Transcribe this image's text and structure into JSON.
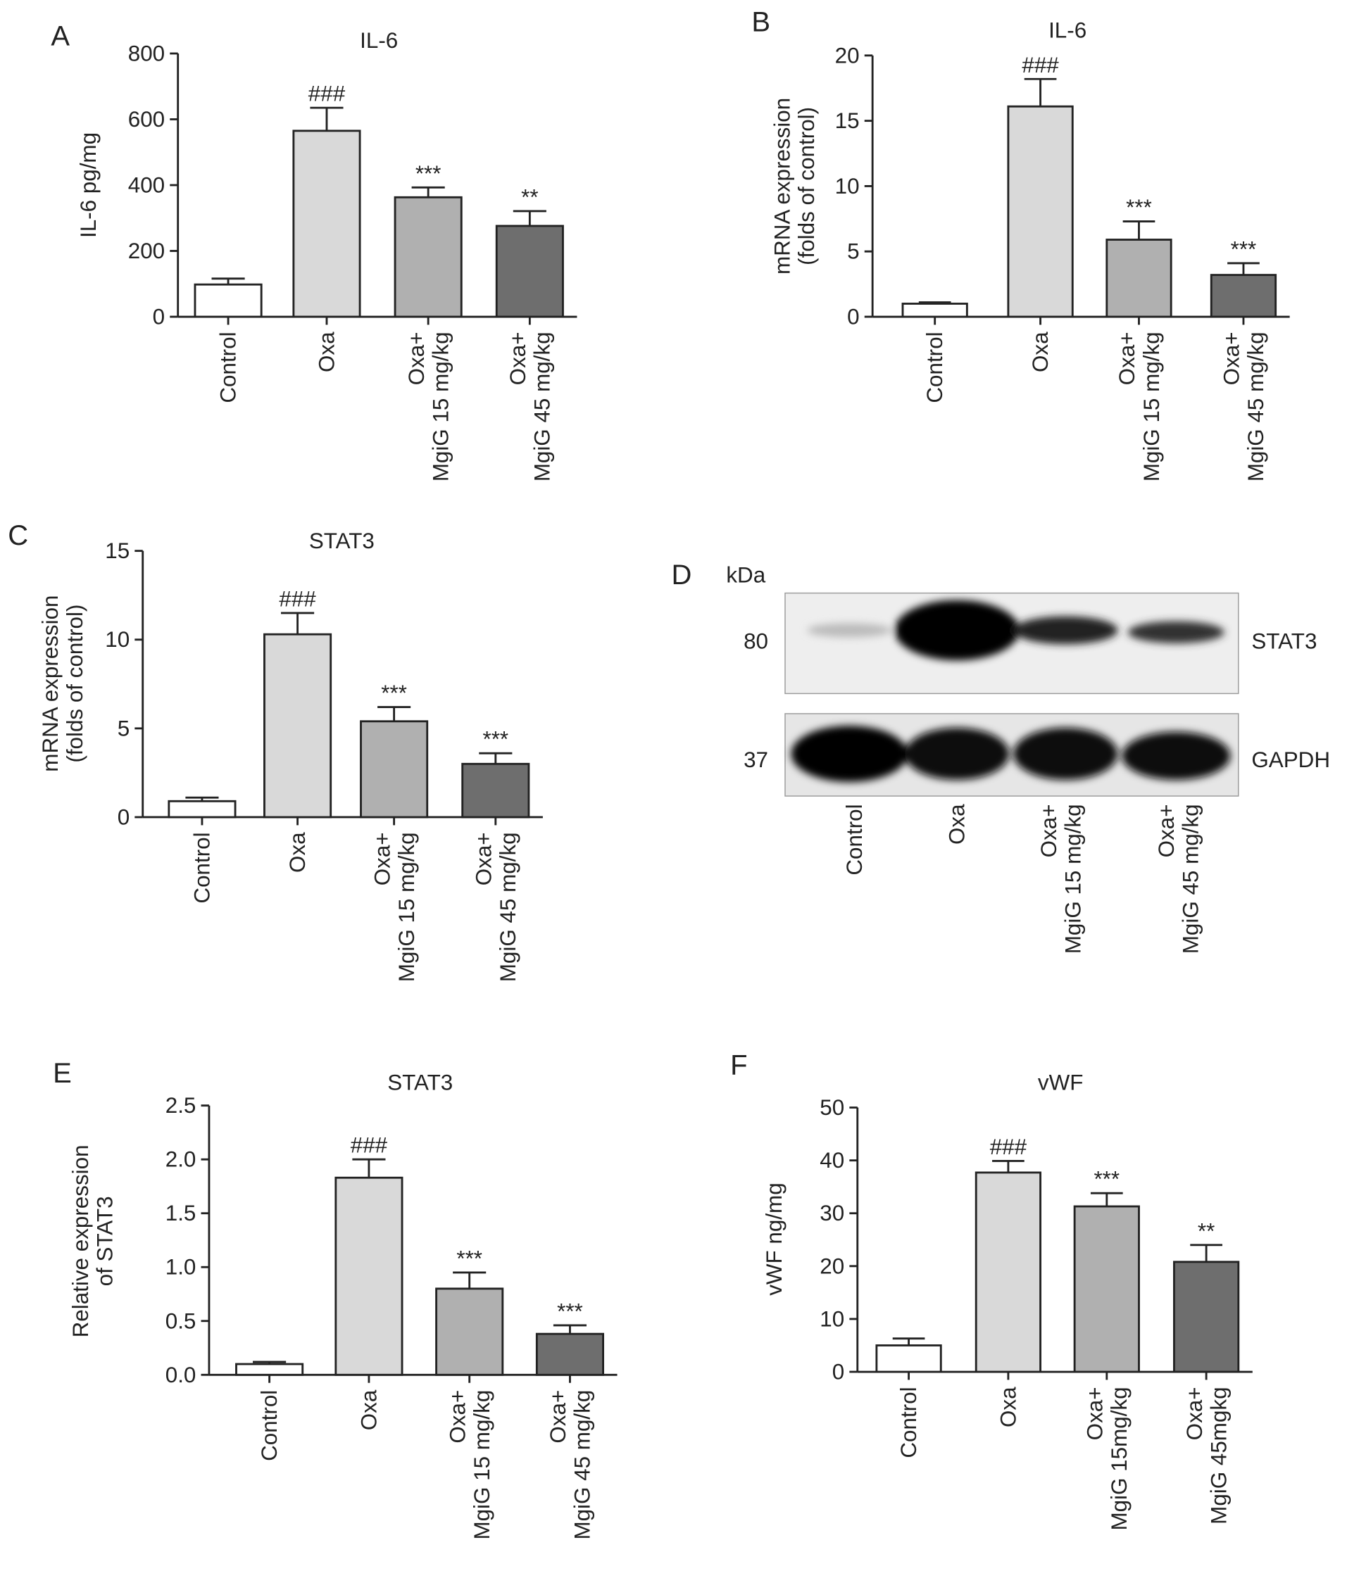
{
  "chart_data": [
    {
      "type": "bar",
      "panel": "A",
      "title": "IL-6",
      "ylabel": "IL-6 pg/mg",
      "categories": [
        "Control",
        "Oxa",
        "Oxa+\nMgiG 15 mg/kg",
        "Oxa+\nMgiG 45 mg/kg"
      ],
      "values": [
        98,
        565,
        363,
        276
      ],
      "errors": [
        18,
        70,
        30,
        45
      ],
      "annotations": [
        null,
        "###",
        "***",
        "**"
      ],
      "colors": [
        "#ffffff",
        "#d9d9d9",
        "#b0b0b0",
        "#6e6e6e"
      ],
      "ylim": [
        0,
        800
      ],
      "yticks": [
        0,
        200,
        400,
        600,
        800
      ]
    },
    {
      "type": "bar",
      "panel": "B",
      "title": "IL-6",
      "ylabel": "mRNA expression\n(folds of control)",
      "categories": [
        "Control",
        "Oxa",
        "Oxa+\nMgiG 15 mg/kg",
        "Oxa+\nMgiG 45 mg/kg"
      ],
      "values": [
        1,
        16.1,
        5.9,
        3.2
      ],
      "errors": [
        0.1,
        2.1,
        1.4,
        0.9
      ],
      "annotations": [
        null,
        "###",
        "***",
        "***"
      ],
      "colors": [
        "#ffffff",
        "#d9d9d9",
        "#b0b0b0",
        "#6e6e6e"
      ],
      "ylim": [
        0,
        20
      ],
      "yticks": [
        0,
        5,
        10,
        15,
        20
      ]
    },
    {
      "type": "bar",
      "panel": "C",
      "title": "STAT3",
      "ylabel": "mRNA expression\n(folds of control)",
      "categories": [
        "Control",
        "Oxa",
        "Oxa+\nMgiG 15 mg/kg",
        "Oxa+\nMgiG 45 mg/kg"
      ],
      "values": [
        0.9,
        10.3,
        5.4,
        3.0
      ],
      "errors": [
        0.2,
        1.2,
        0.8,
        0.6
      ],
      "annotations": [
        null,
        "###",
        "***",
        "***"
      ],
      "colors": [
        "#ffffff",
        "#d9d9d9",
        "#b0b0b0",
        "#6e6e6e"
      ],
      "ylim": [
        0,
        15
      ],
      "yticks": [
        0,
        5,
        10,
        15
      ]
    },
    {
      "type": "blot",
      "panel": "D",
      "unit_label": "kDa",
      "bands": [
        {
          "name": "STAT3",
          "kda": 80
        },
        {
          "name": "GAPDH",
          "kda": 37
        }
      ],
      "categories": [
        "Control",
        "Oxa",
        "Oxa+\nMgiG 15 mg/kg",
        "Oxa+\nMgiG 45 mg/kg"
      ]
    },
    {
      "type": "bar",
      "panel": "E",
      "title": "STAT3",
      "ylabel": "Relative expression\nof STAT3",
      "categories": [
        "Control",
        "Oxa",
        "Oxa+\nMgiG 15 mg/kg",
        "Oxa+\nMgiG 45 mg/kg"
      ],
      "values": [
        0.1,
        1.83,
        0.8,
        0.38
      ],
      "errors": [
        0.02,
        0.17,
        0.15,
        0.08
      ],
      "annotations": [
        null,
        "###",
        "***",
        "***"
      ],
      "colors": [
        "#ffffff",
        "#d9d9d9",
        "#b0b0b0",
        "#6e6e6e"
      ],
      "ylim": [
        0,
        2.5
      ],
      "yticks": [
        {
          "value": 0,
          "label": "0.0"
        },
        0.5,
        {
          "value": 1,
          "label": "1.0"
        },
        1.5,
        {
          "value": 2,
          "label": "2.0"
        },
        2.5
      ]
    },
    {
      "type": "bar",
      "panel": "F",
      "title": "vWF",
      "ylabel": "vWF ng/mg",
      "categories": [
        "Control",
        "Oxa",
        "Oxa+\nMgiG 15mg/kg",
        "Oxa+\nMgiG 45mgkg"
      ],
      "values": [
        5,
        37.7,
        31.3,
        20.8
      ],
      "errors": [
        1.3,
        2.2,
        2.5,
        3.2
      ],
      "annotations": [
        null,
        "###",
        "***",
        "**"
      ],
      "colors": [
        "#ffffff",
        "#d9d9d9",
        "#b0b0b0",
        "#6e6e6e"
      ],
      "ylim": [
        0,
        50
      ],
      "yticks": [
        0,
        10,
        20,
        30,
        40,
        50
      ]
    }
  ]
}
